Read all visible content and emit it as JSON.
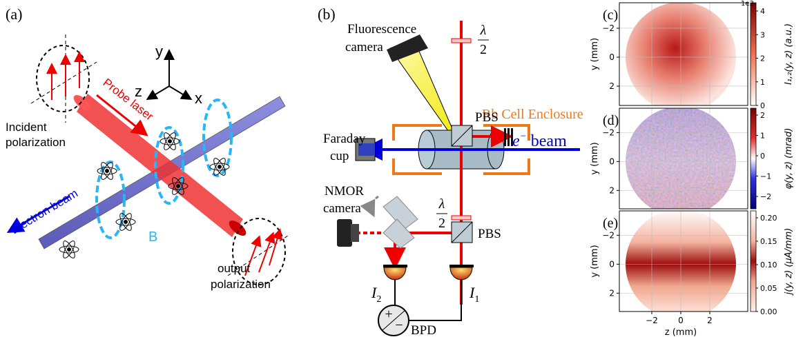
{
  "panel_a": {
    "label": "(a)",
    "axis_y": "y",
    "axis_z": "z",
    "axis_x": "x",
    "probe_laser": "Probe laser",
    "incident_polarization": [
      "Incident",
      "polarization"
    ],
    "electron_beam": "Electron beam",
    "field": "B",
    "output_polarization": [
      "output",
      "polarization"
    ]
  },
  "panel_b": {
    "label": "(b)",
    "fluorescence_camera": [
      "Fluorescence",
      "camera"
    ],
    "waveplate_top": {
      "numerator": "λ",
      "denominator": "2"
    },
    "pbs_top": "PBS",
    "enclosure": "Rb Cell Enclosure",
    "faraday_cup": [
      "Faraday",
      "cup"
    ],
    "beam": {
      "symbol": "e",
      "superscript": "−",
      "text": "beam"
    },
    "waveplate_bottom": {
      "numerator": "λ",
      "denominator": "2"
    },
    "nmor_camera": [
      "NMOR",
      "camera"
    ],
    "pbs_bottom": "PBS",
    "detector_2": {
      "symbol": "I",
      "subscript": "2"
    },
    "detector_1": {
      "symbol": "I",
      "subscript": "1"
    },
    "bpd_plus": "+",
    "bpd_minus": "−",
    "bpd": "BPD"
  },
  "panel_c": {
    "label": "(c)",
    "y_label": "y (mm)",
    "y_ticks": [
      "−2",
      "0",
      "2"
    ],
    "colorbar_label": "I₁,₂(y, z) (a.u.)",
    "colorbar_ticks": [
      "0",
      "1",
      "2",
      "3",
      "4"
    ],
    "colorbar_scale": "1e3"
  },
  "panel_d": {
    "label": "(d)",
    "y_label": "y (mm)",
    "y_ticks": [
      "−2",
      "0",
      "2"
    ],
    "colorbar_label": "φ(y, z) (mrad)",
    "colorbar_ticks": [
      "−2",
      "−1",
      "0",
      "1",
      "2"
    ]
  },
  "panel_e": {
    "label": "(e)",
    "y_label": "y (mm)",
    "y_ticks": [
      "−2",
      "0",
      "2"
    ],
    "x_label": "z (mm)",
    "x_ticks": [
      "−2",
      "0",
      "2"
    ],
    "colorbar_label": "j(y, z) (μA/mm)",
    "colorbar_ticks": [
      "0.00",
      "0.05",
      "0.10",
      "0.15",
      "0.20"
    ]
  }
}
